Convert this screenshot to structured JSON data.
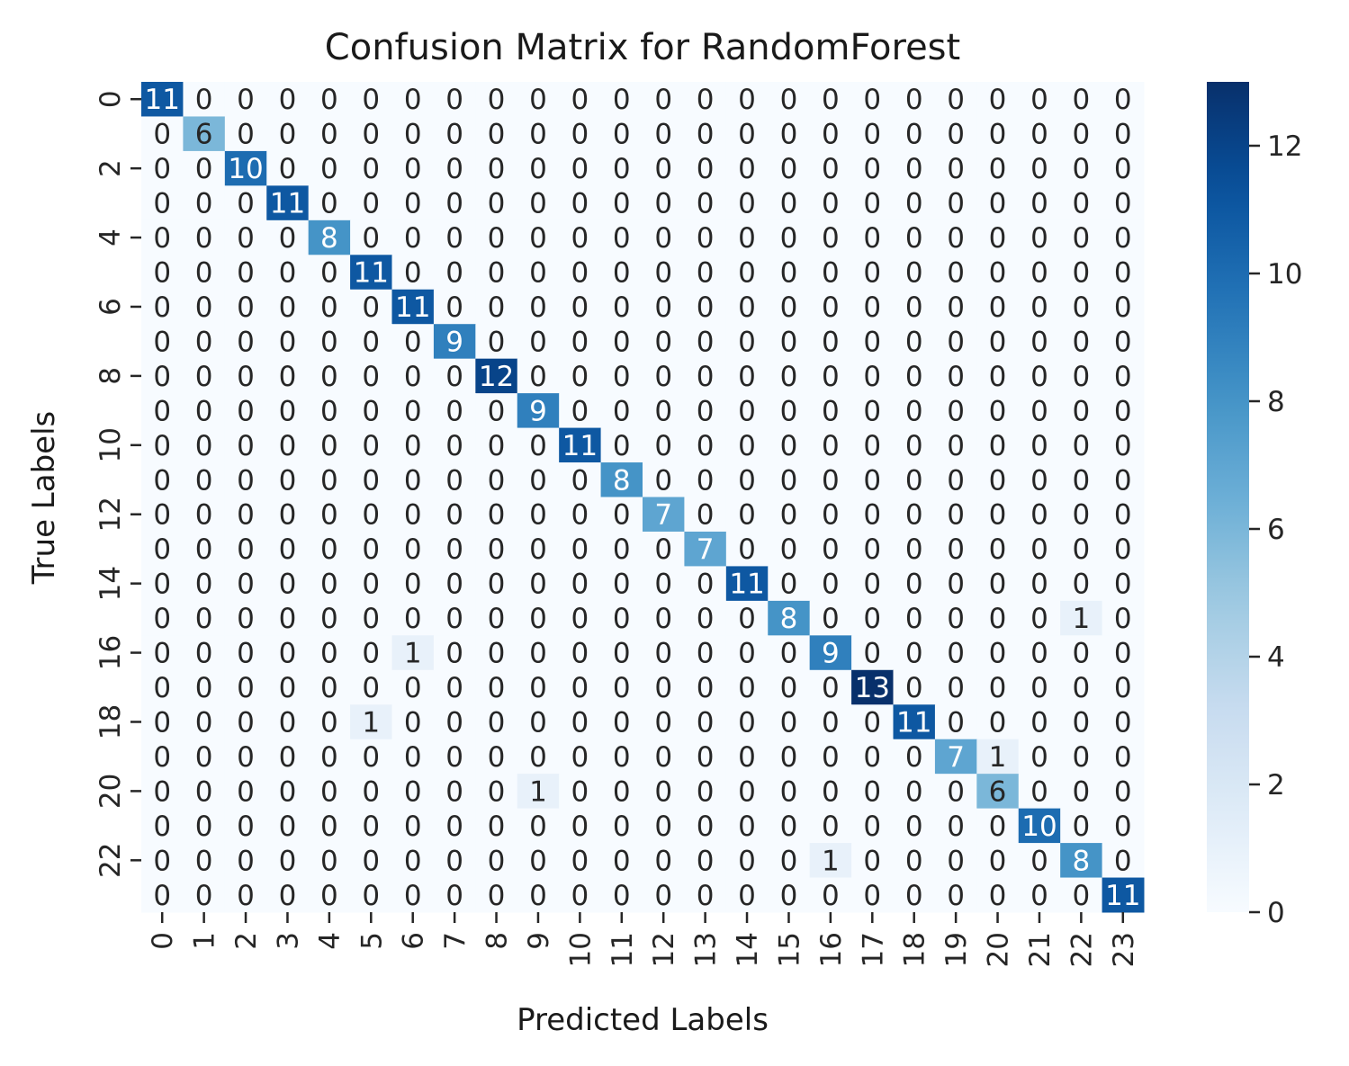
{
  "chart_data": {
    "type": "heatmap",
    "title": "Confusion Matrix for RandomForest",
    "xlabel": "Predicted Labels",
    "ylabel": "True Labels",
    "x_categories": [
      "0",
      "1",
      "2",
      "3",
      "4",
      "5",
      "6",
      "7",
      "8",
      "9",
      "10",
      "11",
      "12",
      "13",
      "14",
      "15",
      "16",
      "17",
      "18",
      "19",
      "20",
      "21",
      "22",
      "23"
    ],
    "y_tick_labels": [
      "0",
      "2",
      "4",
      "6",
      "8",
      "10",
      "12",
      "14",
      "16",
      "18",
      "20",
      "22"
    ],
    "colormap": "Blues",
    "colorbar": {
      "min": 0,
      "max": 13,
      "ticks": [
        0,
        2,
        4,
        6,
        8,
        10,
        12
      ]
    },
    "matrix": [
      [
        11,
        0,
        0,
        0,
        0,
        0,
        0,
        0,
        0,
        0,
        0,
        0,
        0,
        0,
        0,
        0,
        0,
        0,
        0,
        0,
        0,
        0,
        0,
        0
      ],
      [
        0,
        6,
        0,
        0,
        0,
        0,
        0,
        0,
        0,
        0,
        0,
        0,
        0,
        0,
        0,
        0,
        0,
        0,
        0,
        0,
        0,
        0,
        0,
        0
      ],
      [
        0,
        0,
        10,
        0,
        0,
        0,
        0,
        0,
        0,
        0,
        0,
        0,
        0,
        0,
        0,
        0,
        0,
        0,
        0,
        0,
        0,
        0,
        0,
        0
      ],
      [
        0,
        0,
        0,
        11,
        0,
        0,
        0,
        0,
        0,
        0,
        0,
        0,
        0,
        0,
        0,
        0,
        0,
        0,
        0,
        0,
        0,
        0,
        0,
        0
      ],
      [
        0,
        0,
        0,
        0,
        8,
        0,
        0,
        0,
        0,
        0,
        0,
        0,
        0,
        0,
        0,
        0,
        0,
        0,
        0,
        0,
        0,
        0,
        0,
        0
      ],
      [
        0,
        0,
        0,
        0,
        0,
        11,
        0,
        0,
        0,
        0,
        0,
        0,
        0,
        0,
        0,
        0,
        0,
        0,
        0,
        0,
        0,
        0,
        0,
        0
      ],
      [
        0,
        0,
        0,
        0,
        0,
        0,
        11,
        0,
        0,
        0,
        0,
        0,
        0,
        0,
        0,
        0,
        0,
        0,
        0,
        0,
        0,
        0,
        0,
        0
      ],
      [
        0,
        0,
        0,
        0,
        0,
        0,
        0,
        9,
        0,
        0,
        0,
        0,
        0,
        0,
        0,
        0,
        0,
        0,
        0,
        0,
        0,
        0,
        0,
        0
      ],
      [
        0,
        0,
        0,
        0,
        0,
        0,
        0,
        0,
        12,
        0,
        0,
        0,
        0,
        0,
        0,
        0,
        0,
        0,
        0,
        0,
        0,
        0,
        0,
        0
      ],
      [
        0,
        0,
        0,
        0,
        0,
        0,
        0,
        0,
        0,
        9,
        0,
        0,
        0,
        0,
        0,
        0,
        0,
        0,
        0,
        0,
        0,
        0,
        0,
        0
      ],
      [
        0,
        0,
        0,
        0,
        0,
        0,
        0,
        0,
        0,
        0,
        11,
        0,
        0,
        0,
        0,
        0,
        0,
        0,
        0,
        0,
        0,
        0,
        0,
        0
      ],
      [
        0,
        0,
        0,
        0,
        0,
        0,
        0,
        0,
        0,
        0,
        0,
        8,
        0,
        0,
        0,
        0,
        0,
        0,
        0,
        0,
        0,
        0,
        0,
        0
      ],
      [
        0,
        0,
        0,
        0,
        0,
        0,
        0,
        0,
        0,
        0,
        0,
        0,
        7,
        0,
        0,
        0,
        0,
        0,
        0,
        0,
        0,
        0,
        0,
        0
      ],
      [
        0,
        0,
        0,
        0,
        0,
        0,
        0,
        0,
        0,
        0,
        0,
        0,
        0,
        7,
        0,
        0,
        0,
        0,
        0,
        0,
        0,
        0,
        0,
        0
      ],
      [
        0,
        0,
        0,
        0,
        0,
        0,
        0,
        0,
        0,
        0,
        0,
        0,
        0,
        0,
        11,
        0,
        0,
        0,
        0,
        0,
        0,
        0,
        0,
        0
      ],
      [
        0,
        0,
        0,
        0,
        0,
        0,
        0,
        0,
        0,
        0,
        0,
        0,
        0,
        0,
        0,
        8,
        0,
        0,
        0,
        0,
        0,
        0,
        1,
        0
      ],
      [
        0,
        0,
        0,
        0,
        0,
        0,
        1,
        0,
        0,
        0,
        0,
        0,
        0,
        0,
        0,
        0,
        9,
        0,
        0,
        0,
        0,
        0,
        0,
        0
      ],
      [
        0,
        0,
        0,
        0,
        0,
        0,
        0,
        0,
        0,
        0,
        0,
        0,
        0,
        0,
        0,
        0,
        0,
        13,
        0,
        0,
        0,
        0,
        0,
        0
      ],
      [
        0,
        0,
        0,
        0,
        0,
        1,
        0,
        0,
        0,
        0,
        0,
        0,
        0,
        0,
        0,
        0,
        0,
        0,
        11,
        0,
        0,
        0,
        0,
        0
      ],
      [
        0,
        0,
        0,
        0,
        0,
        0,
        0,
        0,
        0,
        0,
        0,
        0,
        0,
        0,
        0,
        0,
        0,
        0,
        0,
        7,
        1,
        0,
        0,
        0
      ],
      [
        0,
        0,
        0,
        0,
        0,
        0,
        0,
        0,
        0,
        1,
        0,
        0,
        0,
        0,
        0,
        0,
        0,
        0,
        0,
        0,
        6,
        0,
        0,
        0
      ],
      [
        0,
        0,
        0,
        0,
        0,
        0,
        0,
        0,
        0,
        0,
        0,
        0,
        0,
        0,
        0,
        0,
        0,
        0,
        0,
        0,
        0,
        10,
        0,
        0
      ],
      [
        0,
        0,
        0,
        0,
        0,
        0,
        0,
        0,
        0,
        0,
        0,
        0,
        0,
        0,
        0,
        0,
        1,
        0,
        0,
        0,
        0,
        0,
        8,
        0
      ],
      [
        0,
        0,
        0,
        0,
        0,
        0,
        0,
        0,
        0,
        0,
        0,
        0,
        0,
        0,
        0,
        0,
        0,
        0,
        0,
        0,
        0,
        0,
        0,
        11
      ]
    ],
    "grid": false,
    "legend": "colorbar-right"
  }
}
